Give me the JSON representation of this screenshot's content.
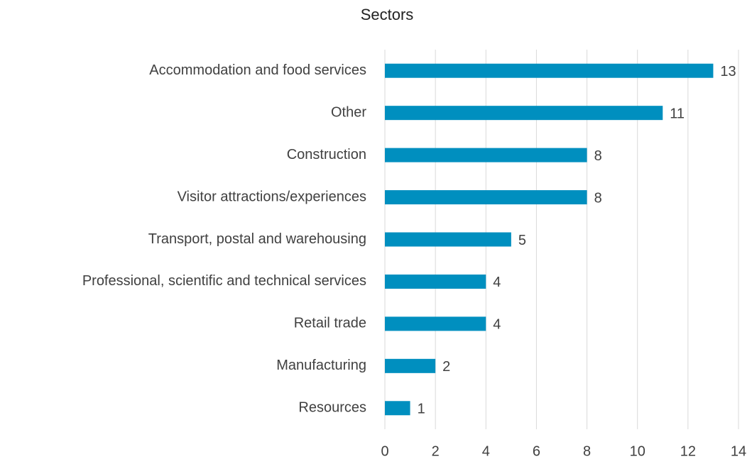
{
  "chart_data": {
    "type": "bar",
    "orientation": "horizontal",
    "title": "Sectors",
    "categories": [
      "Accommodation and food services",
      "Other",
      "Construction",
      "Visitor attractions/experiences",
      "Transport, postal and warehousing",
      "Professional, scientific and technical services",
      "Retail trade",
      "Manufacturing",
      "Resources"
    ],
    "values": [
      13,
      11,
      8,
      8,
      5,
      4,
      4,
      2,
      1
    ],
    "color": "#008fbf",
    "xlim": [
      0,
      14
    ],
    "xticks": [
      0,
      2,
      4,
      6,
      8,
      10,
      12,
      14
    ],
    "grid": true
  }
}
